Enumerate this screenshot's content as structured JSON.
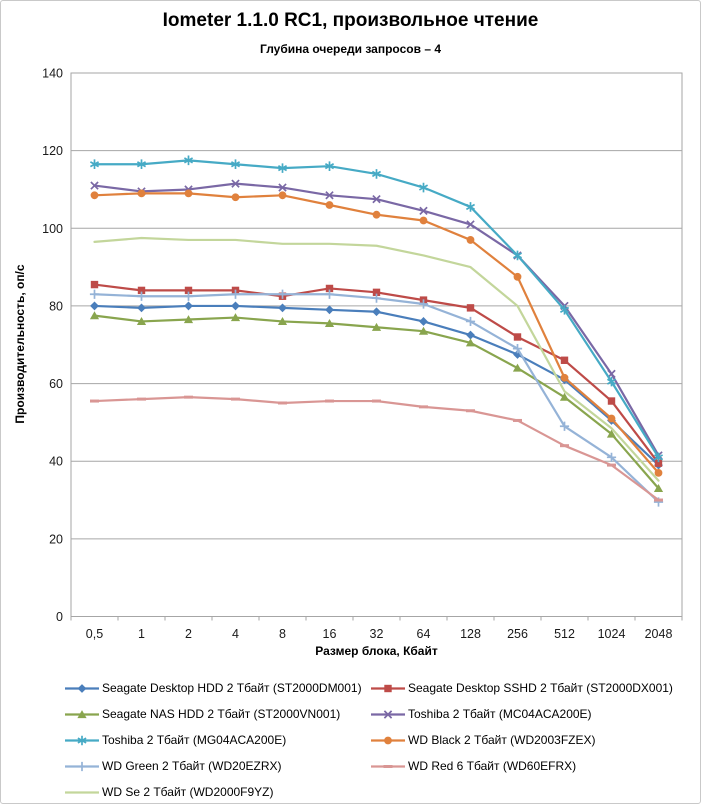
{
  "chart_data": {
    "type": "line",
    "title": "Iometer 1.1.0 RC1, произвольное чтение",
    "subtitle": "Глубина очереди запросов – 4",
    "xlabel": "Размер блока, Кбайт",
    "ylabel": "Производительность,  оп/с",
    "categories": [
      "0,5",
      "1",
      "2",
      "4",
      "8",
      "16",
      "32",
      "64",
      "128",
      "256",
      "512",
      "1024",
      "2048"
    ],
    "ylim": [
      0,
      140
    ],
    "y_tick_step": 20,
    "grid": true,
    "legend_position": "bottom",
    "grid_color": "#a6a6a6",
    "tick_label_color": "#1a1a1a",
    "series": [
      {
        "name": "Seagate Desktop HDD 2 Тбайт (ST2000DM001)",
        "color": "#4a7ebb",
        "marker": "diamond",
        "values": [
          80,
          79.5,
          80,
          80,
          79.5,
          79,
          78.5,
          76,
          72.5,
          67.5,
          61,
          50.5,
          39
        ]
      },
      {
        "name": "Seagate Desktop SSHD 2 Тбайт (ST2000DX001)",
        "color": "#be4b48",
        "marker": "square",
        "values": [
          85.5,
          84,
          84,
          84,
          82.5,
          84.5,
          83.5,
          81.5,
          79.5,
          72,
          66,
          55.5,
          39.5
        ]
      },
      {
        "name": "Seagate NAS HDD 2 Тбайт (ST2000VN001)",
        "color": "#89a54e",
        "marker": "triangle",
        "values": [
          77.5,
          76,
          76.5,
          77,
          76,
          75.5,
          74.5,
          73.5,
          70.5,
          64,
          56.5,
          47,
          33
        ]
      },
      {
        "name": "Toshiba 2 Тбайт (MC04ACA200E)",
        "color": "#7a68a5",
        "marker": "x",
        "values": [
          111,
          109.5,
          110,
          111.5,
          110.5,
          108.5,
          107.5,
          104.5,
          101,
          93,
          80,
          62.5,
          41.5
        ]
      },
      {
        "name": "Toshiba 2 Тбайт (MG04ACA200E)",
        "color": "#46aac5",
        "marker": "asterisk",
        "values": [
          116.5,
          116.5,
          117.5,
          116.5,
          115.5,
          116,
          114,
          110.5,
          105.5,
          93,
          79,
          60.5,
          41
        ]
      },
      {
        "name": "WD Black 2 Тбайт (WD2003FZEX)",
        "color": "#e0813d",
        "marker": "circle",
        "values": [
          108.5,
          109,
          109,
          108,
          108.5,
          106,
          103.5,
          102,
          97,
          87.5,
          61.5,
          51,
          37
        ]
      },
      {
        "name": "WD Green 2 Тбайт (WD20EZRX)",
        "color": "#95b3d7",
        "marker": "plus",
        "values": [
          83,
          82.5,
          82.5,
          83,
          83,
          83,
          82,
          80.5,
          76,
          69,
          49,
          41,
          29.5
        ]
      },
      {
        "name": "WD Red 6 Тбайт (WD60EFRX)",
        "color": "#d99694",
        "marker": "dash",
        "values": [
          55.5,
          56,
          56.5,
          56,
          55,
          55.5,
          55.5,
          54,
          53,
          50.5,
          44,
          39,
          30
        ]
      },
      {
        "name": "WD Se 2 Тбайт (WD2000F9YZ)",
        "color": "#c3d69b",
        "marker": "none",
        "values": [
          96.5,
          97.5,
          97,
          97,
          96,
          96,
          95.5,
          93,
          90,
          80,
          58,
          48.5,
          35
        ]
      }
    ]
  }
}
